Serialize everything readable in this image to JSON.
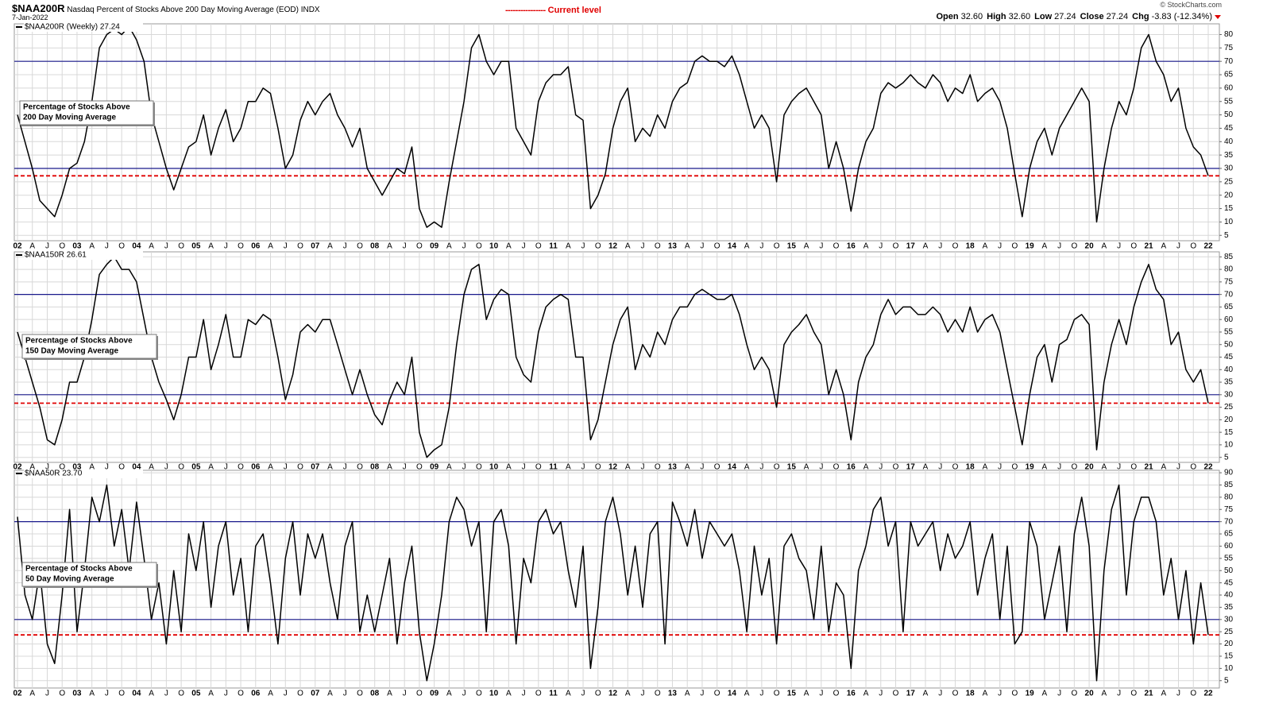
{
  "header": {
    "symbol": "$NAA200R",
    "description": "Nasdaq Percent of Stocks Above 200 Day Moving Average (EOD)",
    "exchange": "INDX",
    "date": "7-Jan-2022",
    "legend_marker": "----------------",
    "legend": "Current level",
    "brand": "© StockCharts.com",
    "quote": [
      {
        "label": "Open",
        "value": "32.60"
      },
      {
        "label": "High",
        "value": "32.60"
      },
      {
        "label": "Low",
        "value": "27.24"
      },
      {
        "label": "Close",
        "value": "27.24"
      },
      {
        "label": "Chg",
        "value": "-3.83 (-12.34%)"
      }
    ]
  },
  "chart_data": [
    {
      "type": "line",
      "label": "$NAA200R (Weekly) 27.24",
      "annotation": [
        "Percentage of Stocks Above",
        "200 Day Moving Average"
      ],
      "color": "#000000",
      "ylim": [
        3,
        84
      ],
      "yticks": [
        5,
        10,
        15,
        20,
        25,
        30,
        35,
        40,
        45,
        50,
        55,
        60,
        65,
        70,
        75,
        80
      ],
      "grid": true,
      "hlines": [
        {
          "value": 70,
          "color": "#1a1a8c"
        },
        {
          "value": 30,
          "color": "#1a1a8c"
        }
      ],
      "current_level": 27.24,
      "current_color": "#e00000",
      "categories": [
        "02",
        null,
        "A",
        null,
        "J",
        null,
        "O",
        null,
        "03",
        null,
        "A",
        null,
        "J",
        null,
        "O",
        null,
        "04",
        null,
        "A",
        null,
        "J",
        null,
        "O",
        null,
        "05",
        null,
        "A",
        null,
        "J",
        null,
        "O",
        null,
        "06",
        null,
        "A",
        null,
        "J",
        null,
        "O",
        null,
        "07",
        null,
        "A",
        null,
        "J",
        null,
        "O",
        null,
        "08",
        null,
        "A",
        null,
        "J",
        null,
        "O",
        null,
        "09",
        null,
        "A",
        null,
        "J",
        null,
        "O",
        null,
        "10",
        null,
        "A",
        null,
        "J",
        null,
        "O",
        null,
        "11",
        null,
        "A",
        null,
        "J",
        null,
        "O",
        null,
        "12",
        null,
        "A",
        null,
        "J",
        null,
        "O",
        null,
        "13",
        null,
        "A",
        null,
        "J",
        null,
        "O",
        null,
        "14",
        null,
        "A",
        null,
        "J",
        null,
        "O",
        null,
        "15",
        null,
        "A",
        null,
        "J",
        null,
        "O",
        null,
        "16",
        null,
        "A",
        null,
        "J",
        null,
        "O",
        null,
        "17",
        null,
        "A",
        null,
        "J",
        null,
        "O",
        null,
        "18",
        null,
        "A",
        null,
        "J",
        null,
        "O",
        null,
        "19",
        null,
        "A",
        null,
        "J",
        null,
        "O",
        null,
        "20",
        null,
        "A",
        null,
        "J",
        null,
        "O",
        null,
        "21",
        null,
        "A",
        null,
        "J",
        null,
        "O",
        null,
        "22"
      ],
      "values": [
        50,
        40,
        30,
        18,
        15,
        12,
        20,
        30,
        32,
        40,
        55,
        75,
        80,
        82,
        80,
        83,
        78,
        70,
        50,
        40,
        30,
        22,
        30,
        38,
        40,
        50,
        35,
        45,
        52,
        40,
        45,
        55,
        55,
        60,
        58,
        45,
        30,
        35,
        48,
        55,
        50,
        55,
        58,
        50,
        45,
        38,
        45,
        30,
        25,
        20,
        25,
        30,
        28,
        38,
        15,
        8,
        10,
        8,
        25,
        40,
        55,
        75,
        80,
        70,
        65,
        70,
        70,
        45,
        40,
        35,
        55,
        62,
        65,
        65,
        68,
        50,
        48,
        15,
        20,
        28,
        45,
        55,
        60,
        40,
        45,
        42,
        50,
        45,
        55,
        60,
        62,
        70,
        72,
        70,
        70,
        68,
        72,
        65,
        55,
        45,
        50,
        45,
        25,
        50,
        55,
        58,
        60,
        55,
        50,
        30,
        40,
        30,
        14,
        30,
        40,
        45,
        58,
        62,
        60,
        62,
        65,
        62,
        60,
        65,
        62,
        55,
        60,
        58,
        65,
        55,
        58,
        60,
        55,
        45,
        28,
        12,
        30,
        40,
        45,
        35,
        45,
        50,
        55,
        60,
        55,
        10,
        30,
        45,
        55,
        50,
        60,
        75,
        80,
        70,
        65,
        55,
        60,
        45,
        38,
        35,
        27.24
      ]
    },
    {
      "type": "line",
      "label": "$NAA150R 26.61",
      "annotation": [
        "Percentage of Stocks Above",
        "150 Day Moving Average"
      ],
      "color": "#000000",
      "ylim": [
        3,
        87
      ],
      "yticks": [
        5,
        10,
        15,
        20,
        25,
        30,
        35,
        40,
        45,
        50,
        55,
        60,
        65,
        70,
        75,
        80,
        85
      ],
      "grid": true,
      "hlines": [
        {
          "value": 70,
          "color": "#1a1a8c"
        },
        {
          "value": 30,
          "color": "#1a1a8c"
        }
      ],
      "current_level": 26.61,
      "current_color": "#e00000",
      "categories": [
        "02",
        null,
        "A",
        null,
        "J",
        null,
        "O",
        null,
        "03",
        null,
        "A",
        null,
        "J",
        null,
        "O",
        null,
        "04",
        null,
        "A",
        null,
        "J",
        null,
        "O",
        null,
        "05",
        null,
        "A",
        null,
        "J",
        null,
        "O",
        null,
        "06",
        null,
        "A",
        null,
        "J",
        null,
        "O",
        null,
        "07",
        null,
        "A",
        null,
        "J",
        null,
        "O",
        null,
        "08",
        null,
        "A",
        null,
        "J",
        null,
        "O",
        null,
        "09",
        null,
        "A",
        null,
        "J",
        null,
        "O",
        null,
        "10",
        null,
        "A",
        null,
        "J",
        null,
        "O",
        null,
        "11",
        null,
        "A",
        null,
        "J",
        null,
        "O",
        null,
        "12",
        null,
        "A",
        null,
        "J",
        null,
        "O",
        null,
        "13",
        null,
        "A",
        null,
        "J",
        null,
        "O",
        null,
        "14",
        null,
        "A",
        null,
        "J",
        null,
        "O",
        null,
        "15",
        null,
        "A",
        null,
        "J",
        null,
        "O",
        null,
        "16",
        null,
        "A",
        null,
        "J",
        null,
        "O",
        null,
        "17",
        null,
        "A",
        null,
        "J",
        null,
        "O",
        null,
        "18",
        null,
        "A",
        null,
        "J",
        null,
        "O",
        null,
        "19",
        null,
        "A",
        null,
        "J",
        null,
        "O",
        null,
        "20",
        null,
        "A",
        null,
        "J",
        null,
        "O",
        null,
        "21",
        null,
        "A",
        null,
        "J",
        null,
        "O",
        null,
        "22"
      ],
      "values": [
        55,
        45,
        35,
        25,
        12,
        10,
        20,
        35,
        35,
        45,
        60,
        78,
        82,
        85,
        80,
        80,
        75,
        60,
        45,
        35,
        28,
        20,
        30,
        45,
        45,
        60,
        40,
        50,
        62,
        45,
        45,
        60,
        58,
        62,
        60,
        45,
        28,
        38,
        55,
        58,
        55,
        60,
        60,
        50,
        40,
        30,
        40,
        30,
        22,
        18,
        28,
        35,
        30,
        45,
        15,
        5,
        8,
        10,
        25,
        50,
        70,
        80,
        82,
        60,
        68,
        72,
        70,
        45,
        38,
        35,
        55,
        65,
        68,
        70,
        68,
        45,
        45,
        12,
        20,
        35,
        50,
        60,
        65,
        40,
        50,
        45,
        55,
        50,
        60,
        65,
        65,
        70,
        72,
        70,
        68,
        68,
        70,
        62,
        50,
        40,
        45,
        40,
        25,
        50,
        55,
        58,
        62,
        55,
        50,
        30,
        40,
        30,
        12,
        35,
        45,
        50,
        62,
        68,
        62,
        65,
        65,
        62,
        62,
        65,
        62,
        55,
        60,
        55,
        65,
        55,
        60,
        62,
        55,
        40,
        25,
        10,
        30,
        45,
        50,
        35,
        50,
        52,
        60,
        62,
        58,
        8,
        35,
        50,
        60,
        50,
        65,
        75,
        82,
        72,
        68,
        50,
        55,
        40,
        35,
        40,
        26.61
      ]
    },
    {
      "type": "line",
      "label": "$NAA50R 23.70",
      "annotation": [
        "Percentage of Stocks Above",
        "50 Day Moving Average"
      ],
      "color": "#000000",
      "ylim": [
        2,
        91
      ],
      "yticks": [
        5,
        10,
        15,
        20,
        25,
        30,
        35,
        40,
        45,
        50,
        55,
        60,
        65,
        70,
        75,
        80,
        85,
        90
      ],
      "grid": true,
      "hlines": [
        {
          "value": 70,
          "color": "#1a1a8c"
        },
        {
          "value": 30,
          "color": "#1a1a8c"
        }
      ],
      "current_level": 23.7,
      "current_color": "#e00000",
      "categories": [
        "02",
        null,
        "A",
        null,
        "J",
        null,
        "O",
        null,
        "03",
        null,
        "A",
        null,
        "J",
        null,
        "O",
        null,
        "04",
        null,
        "A",
        null,
        "J",
        null,
        "O",
        null,
        "05",
        null,
        "A",
        null,
        "J",
        null,
        "O",
        null,
        "06",
        null,
        "A",
        null,
        "J",
        null,
        "O",
        null,
        "07",
        null,
        "A",
        null,
        "J",
        null,
        "O",
        null,
        "08",
        null,
        "A",
        null,
        "J",
        null,
        "O",
        null,
        "09",
        null,
        "A",
        null,
        "J",
        null,
        "O",
        null,
        "10",
        null,
        "A",
        null,
        "J",
        null,
        "O",
        null,
        "11",
        null,
        "A",
        null,
        "J",
        null,
        "O",
        null,
        "12",
        null,
        "A",
        null,
        "J",
        null,
        "O",
        null,
        "13",
        null,
        "A",
        null,
        "J",
        null,
        "O",
        null,
        "14",
        null,
        "A",
        null,
        "J",
        null,
        "O",
        null,
        "15",
        null,
        "A",
        null,
        "J",
        null,
        "O",
        null,
        "16",
        null,
        "A",
        null,
        "J",
        null,
        "O",
        null,
        "17",
        null,
        "A",
        null,
        "J",
        null,
        "O",
        null,
        "18",
        null,
        "A",
        null,
        "J",
        null,
        "O",
        null,
        "19",
        null,
        "A",
        null,
        "J",
        null,
        "O",
        null,
        "20",
        null,
        "A",
        null,
        "J",
        null,
        "O",
        null,
        "21",
        null,
        "A",
        null,
        "J",
        null,
        "O",
        null,
        "22"
      ],
      "values": [
        72,
        40,
        30,
        50,
        20,
        12,
        40,
        75,
        25,
        50,
        80,
        70,
        85,
        60,
        75,
        50,
        78,
        55,
        30,
        45,
        20,
        50,
        25,
        65,
        50,
        70,
        35,
        60,
        70,
        40,
        55,
        25,
        60,
        65,
        45,
        20,
        55,
        70,
        40,
        65,
        55,
        65,
        45,
        30,
        60,
        70,
        25,
        40,
        25,
        40,
        55,
        20,
        45,
        60,
        25,
        5,
        20,
        40,
        70,
        80,
        75,
        60,
        70,
        25,
        70,
        75,
        60,
        20,
        55,
        45,
        70,
        75,
        65,
        70,
        50,
        35,
        60,
        10,
        35,
        70,
        80,
        65,
        40,
        60,
        35,
        65,
        70,
        20,
        78,
        70,
        60,
        75,
        55,
        70,
        65,
        60,
        65,
        50,
        25,
        60,
        40,
        55,
        20,
        60,
        65,
        55,
        50,
        30,
        60,
        25,
        45,
        40,
        10,
        50,
        60,
        75,
        80,
        60,
        70,
        25,
        70,
        60,
        65,
        70,
        50,
        65,
        55,
        60,
        70,
        40,
        55,
        65,
        30,
        60,
        20,
        25,
        70,
        60,
        30,
        45,
        60,
        25,
        65,
        80,
        60,
        5,
        50,
        75,
        85,
        40,
        70,
        80,
        80,
        70,
        40,
        55,
        30,
        50,
        20,
        45,
        23.7
      ]
    }
  ]
}
